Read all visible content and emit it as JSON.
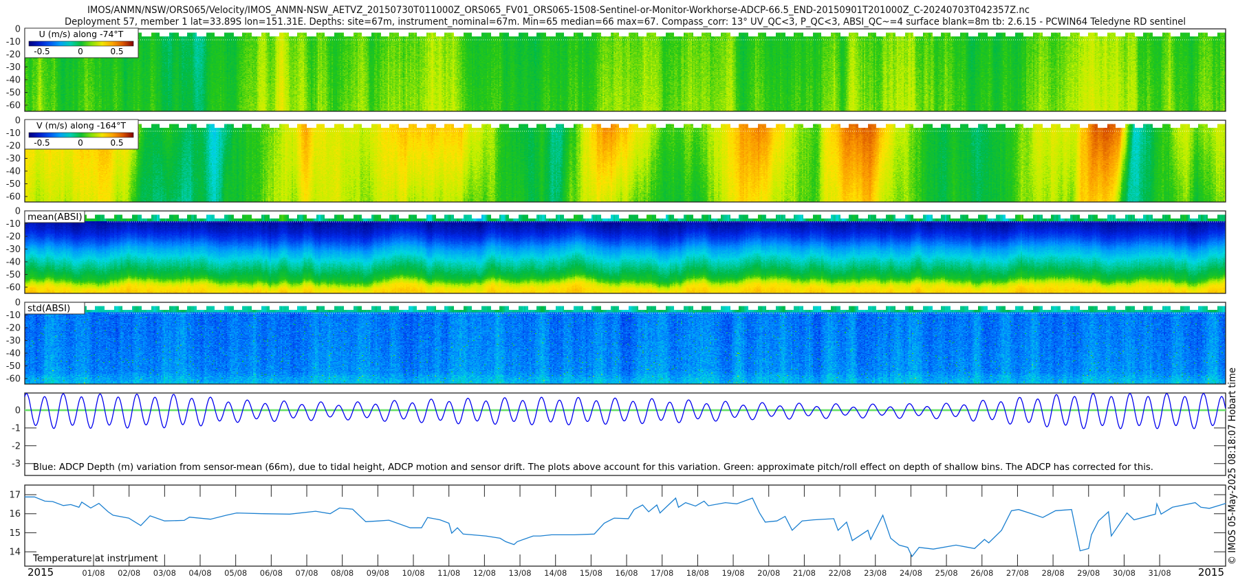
{
  "title": {
    "line1": "IMOS/ANMN/NSW/ORS065/Velocity/IMOS_ANMN-NSW_AETVZ_20150730T011000Z_ORS065_FV01_ORS065-1508-Sentinel-or-Monitor-Workhorse-ADCP-66.5_END-20150901T201000Z_C-20240703T042357Z.nc",
    "line2": "Deployment 57, member 1 lat=33.89S lon=151.31E. Depths: site=67m, instrument_nominal=67m. Min=65 median=66 max=67. Compass_corr: 13° UV_QC<3, P_QC<3, ABSI_QC~=4 surface blank=8m tb: 2.6.15 - PCWIN64 Teledyne RD sentinel"
  },
  "credit": "© IMOS 05-May-2025 08:18:07 Hobart time",
  "x_axis": {
    "year_left": "2015",
    "year_right": "2015",
    "ticks": [
      "01/08",
      "02/08",
      "03/08",
      "04/08",
      "05/08",
      "06/08",
      "07/08",
      "08/08",
      "09/08",
      "10/08",
      "11/08",
      "12/08",
      "13/08",
      "14/08",
      "15/08",
      "16/08",
      "17/08",
      "18/08",
      "19/08",
      "20/08",
      "21/08",
      "22/08",
      "23/08",
      "24/08",
      "25/08",
      "26/08",
      "27/08",
      "28/08",
      "29/08",
      "30/08",
      "31/08"
    ],
    "range_day_of_august": [
      -0.94,
      32.86
    ]
  },
  "heatmap_yticks": [
    "0",
    "-10",
    "-20",
    "-30",
    "-40",
    "-50",
    "-60"
  ],
  "colors": {
    "blue_line": "#0000ee",
    "green_line": "#33dd33",
    "temp_line": "#1a7fd0"
  },
  "chart_data": [
    {
      "type": "heatmap",
      "id": "u",
      "legend": "U (m/s) along -74°T",
      "colorbar_ticks": [
        "-0.5",
        "0",
        "0.5"
      ],
      "clim": [
        -0.7,
        0.7
      ],
      "depth_range": [
        0,
        -65
      ],
      "ylabel_ticks": [
        0,
        -10,
        -20,
        -30,
        -40,
        -50,
        -60
      ],
      "profile_day_value": [
        [
          -0.9,
          0.05
        ],
        [
          1,
          0.02
        ],
        [
          2.5,
          0.0
        ],
        [
          4.3,
          -0.05
        ],
        [
          6.4,
          0.15
        ],
        [
          8,
          0.05
        ],
        [
          9.5,
          0.1
        ],
        [
          11,
          0.12
        ],
        [
          13,
          0.0
        ],
        [
          14.5,
          0.05
        ],
        [
          15.5,
          0.1
        ],
        [
          17,
          0.08
        ],
        [
          19,
          0.1
        ],
        [
          21,
          0.02
        ],
        [
          22.5,
          0.08
        ],
        [
          24,
          0.1
        ],
        [
          26,
          0.0
        ],
        [
          27.5,
          0.05
        ],
        [
          29.5,
          0.2
        ],
        [
          31,
          0.05
        ],
        [
          32.86,
          0.05
        ]
      ]
    },
    {
      "type": "heatmap",
      "id": "v",
      "legend": "V (m/s) along -164°T",
      "colorbar_ticks": [
        "-0.5",
        "0",
        "0.5"
      ],
      "clim": [
        -0.7,
        0.7
      ],
      "depth_range": [
        0,
        -65
      ],
      "ylabel_ticks": [
        0,
        -10,
        -20,
        -30,
        -40,
        -50,
        -60
      ],
      "profile_day_value": [
        [
          -0.9,
          0.25
        ],
        [
          0.5,
          0.3
        ],
        [
          1.2,
          0.35
        ],
        [
          2.0,
          0.25
        ],
        [
          2.5,
          0.0
        ],
        [
          3.5,
          0.0
        ],
        [
          4.3,
          -0.15
        ],
        [
          4.7,
          -0.15
        ],
        [
          5.0,
          0.0
        ],
        [
          6.0,
          0.05
        ],
        [
          7.0,
          0.3
        ],
        [
          7.8,
          0.2
        ],
        [
          8.5,
          0.15
        ],
        [
          9.5,
          0.3
        ],
        [
          10.5,
          0.35
        ],
        [
          11.4,
          0.3
        ],
        [
          12.0,
          0.15
        ],
        [
          13.0,
          0.0
        ],
        [
          14.2,
          -0.05
        ],
        [
          14.8,
          0.15
        ],
        [
          15.4,
          0.45
        ],
        [
          16.1,
          0.3
        ],
        [
          17.0,
          0.1
        ],
        [
          18.0,
          0.1
        ],
        [
          19.2,
          0.35
        ],
        [
          19.8,
          0.45
        ],
        [
          20.7,
          0.15
        ],
        [
          21.4,
          0.1
        ],
        [
          22.3,
          0.45
        ],
        [
          23.0,
          0.45
        ],
        [
          23.6,
          0.2
        ],
        [
          24.6,
          0.0
        ],
        [
          25.8,
          -0.05
        ],
        [
          27.0,
          0.05
        ],
        [
          27.5,
          0.2
        ],
        [
          28.7,
          0.2
        ],
        [
          29.2,
          0.5
        ],
        [
          29.9,
          0.45
        ],
        [
          30.3,
          -0.1
        ],
        [
          30.8,
          -0.05
        ],
        [
          31.4,
          0.15
        ],
        [
          32.86,
          0.15
        ]
      ]
    },
    {
      "type": "heatmap",
      "id": "mean_absi",
      "legend": "mean(ABSI)",
      "depth_range": [
        0,
        -65
      ],
      "ylabel_ticks": [
        0,
        -10,
        -20,
        -30,
        -40,
        -50,
        -60
      ],
      "normalized_profile_depth_value": [
        [
          8,
          0.05
        ],
        [
          15,
          0.1
        ],
        [
          22,
          0.18
        ],
        [
          30,
          0.3
        ],
        [
          38,
          0.38
        ],
        [
          45,
          0.44
        ],
        [
          52,
          0.5
        ],
        [
          57,
          0.62
        ],
        [
          60,
          0.7
        ],
        [
          65,
          0.74
        ]
      ]
    },
    {
      "type": "heatmap",
      "id": "std_absi",
      "legend": "std(ABSI)",
      "depth_range": [
        0,
        -65
      ],
      "ylabel_ticks": [
        0,
        -10,
        -20,
        -30,
        -40,
        -50,
        -60
      ],
      "normalized_profile_depth_value": [
        [
          8,
          0.24
        ],
        [
          30,
          0.25
        ],
        [
          55,
          0.27
        ],
        [
          60,
          0.31
        ],
        [
          65,
          0.33
        ]
      ]
    },
    {
      "type": "line",
      "id": "depth_variation",
      "ylabel_ticks": [
        "0",
        "-1",
        "-2",
        "-3"
      ],
      "ylim": [
        -3.68,
        0.97
      ],
      "annotation": "Blue: ADCP Depth (m) variation from sensor-mean (66m), due to tidal height, ADCP motion and sensor drift. The plots above account for this variation. Green: approximate pitch/roll effect on depth of shallow bins. The ADCP has corrected for this.",
      "series": [
        {
          "name": "ADCP depth variation",
          "tidal_period_days": 0.5175,
          "first_peak_day": -0.89,
          "mean_offset_m": -0.05,
          "diurnal_amplitude_m": 0.12,
          "amplitude_envelope_day_m": [
            [
              -1,
              0.9
            ],
            [
              3.5,
              0.85
            ],
            [
              5,
              0.55
            ],
            [
              8,
              0.4
            ],
            [
              11,
              0.62
            ],
            [
              14,
              0.7
            ],
            [
              17,
              0.6
            ],
            [
              19.5,
              0.4
            ],
            [
              22.5,
              0.3
            ],
            [
              25,
              0.35
            ],
            [
              26.5,
              0.6
            ],
            [
              28.5,
              0.9
            ],
            [
              32.86,
              0.9
            ]
          ]
        },
        {
          "name": "pitch/roll effect",
          "value_m": 0.0
        }
      ]
    },
    {
      "type": "line",
      "id": "temperature",
      "label": "Temperature at instrument",
      "ylabel_ticks": [
        "17",
        "16",
        "15",
        "14"
      ],
      "ylim": [
        13.24,
        17.5
      ],
      "x_unit": "day of August 2015",
      "points": [
        [
          -0.94,
          16.88
        ],
        [
          -0.66,
          16.88
        ],
        [
          -0.37,
          16.66
        ],
        [
          -0.15,
          16.64
        ],
        [
          0.15,
          16.43
        ],
        [
          0.36,
          16.48
        ],
        [
          0.59,
          16.34
        ],
        [
          0.67,
          16.61
        ],
        [
          0.92,
          16.3
        ],
        [
          1.15,
          16.54
        ],
        [
          1.41,
          16.1
        ],
        [
          1.55,
          15.92
        ],
        [
          1.99,
          15.77
        ],
        [
          2.33,
          15.38
        ],
        [
          2.59,
          15.89
        ],
        [
          3.0,
          15.62
        ],
        [
          3.55,
          15.65
        ],
        [
          3.7,
          15.82
        ],
        [
          4.29,
          15.71
        ],
        [
          4.74,
          15.92
        ],
        [
          5.03,
          16.04
        ],
        [
          5.77,
          16.0
        ],
        [
          6.52,
          15.98
        ],
        [
          7.25,
          16.13
        ],
        [
          7.66,
          16.0
        ],
        [
          7.92,
          16.3
        ],
        [
          8.29,
          16.24
        ],
        [
          8.66,
          15.58
        ],
        [
          9.03,
          15.62
        ],
        [
          9.31,
          15.66
        ],
        [
          9.91,
          15.26
        ],
        [
          10.23,
          15.26
        ],
        [
          10.4,
          15.8
        ],
        [
          10.75,
          15.68
        ],
        [
          11.0,
          15.5
        ],
        [
          11.08,
          14.98
        ],
        [
          11.24,
          15.26
        ],
        [
          11.4,
          14.93
        ],
        [
          12.04,
          14.83
        ],
        [
          12.44,
          14.71
        ],
        [
          12.6,
          14.53
        ],
        [
          12.83,
          14.38
        ],
        [
          12.92,
          14.53
        ],
        [
          13.37,
          14.83
        ],
        [
          13.57,
          14.83
        ],
        [
          13.89,
          14.89
        ],
        [
          14.53,
          14.89
        ],
        [
          15.09,
          14.93
        ],
        [
          15.37,
          15.5
        ],
        [
          15.65,
          15.77
        ],
        [
          16.05,
          15.74
        ],
        [
          16.21,
          16.22
        ],
        [
          16.45,
          16.46
        ],
        [
          16.62,
          16.1
        ],
        [
          16.85,
          16.46
        ],
        [
          16.94,
          16.04
        ],
        [
          17.38,
          16.82
        ],
        [
          17.46,
          16.34
        ],
        [
          17.66,
          16.58
        ],
        [
          17.94,
          16.4
        ],
        [
          18.18,
          16.66
        ],
        [
          18.3,
          16.42
        ],
        [
          18.78,
          16.58
        ],
        [
          19.1,
          16.52
        ],
        [
          19.54,
          16.82
        ],
        [
          19.74,
          16.04
        ],
        [
          19.9,
          15.56
        ],
        [
          20.23,
          15.62
        ],
        [
          20.46,
          15.86
        ],
        [
          20.66,
          15.13
        ],
        [
          20.94,
          15.62
        ],
        [
          21.26,
          15.68
        ],
        [
          21.83,
          15.74
        ],
        [
          21.95,
          15.13
        ],
        [
          22.19,
          15.56
        ],
        [
          22.35,
          14.59
        ],
        [
          22.79,
          15.13
        ],
        [
          22.87,
          14.65
        ],
        [
          23.21,
          15.92
        ],
        [
          23.43,
          14.71
        ],
        [
          23.67,
          14.35
        ],
        [
          23.91,
          14.23
        ],
        [
          24.03,
          13.75
        ],
        [
          24.23,
          14.23
        ],
        [
          24.63,
          14.14
        ],
        [
          25.27,
          14.35
        ],
        [
          25.79,
          14.17
        ],
        [
          26.07,
          14.65
        ],
        [
          26.19,
          14.47
        ],
        [
          26.55,
          15.13
        ],
        [
          26.83,
          16.16
        ],
        [
          27.03,
          16.22
        ],
        [
          27.43,
          15.98
        ],
        [
          27.71,
          15.8
        ],
        [
          28.07,
          16.16
        ],
        [
          28.52,
          16.22
        ],
        [
          28.76,
          14.05
        ],
        [
          29.0,
          14.17
        ],
        [
          29.08,
          14.89
        ],
        [
          29.28,
          15.62
        ],
        [
          29.56,
          16.1
        ],
        [
          29.64,
          14.83
        ],
        [
          30.08,
          16.04
        ],
        [
          30.28,
          15.68
        ],
        [
          30.88,
          15.98
        ],
        [
          30.92,
          16.52
        ],
        [
          31.04,
          15.98
        ],
        [
          31.36,
          16.34
        ],
        [
          32.0,
          16.58
        ],
        [
          32.16,
          16.34
        ],
        [
          32.4,
          16.28
        ],
        [
          32.86,
          16.54
        ]
      ]
    }
  ]
}
